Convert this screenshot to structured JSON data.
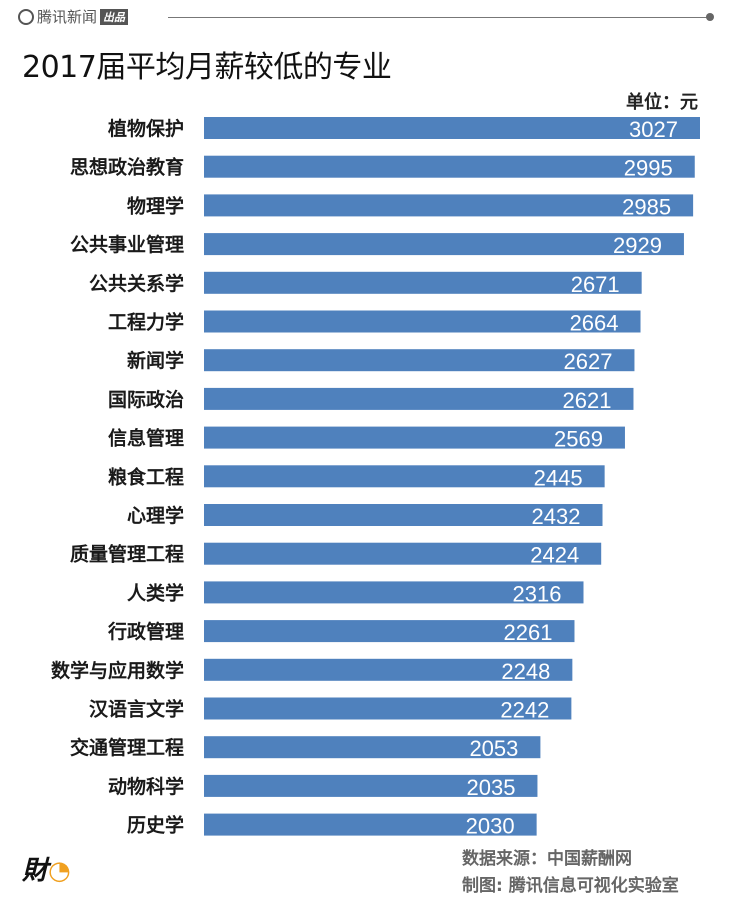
{
  "header": {
    "brand": "腾讯新闻",
    "brand_tag": "出品"
  },
  "chart_data": {
    "type": "bar",
    "orientation": "horizontal",
    "title": "2017届平均月薪较低的专业",
    "unit_label": "单位：元",
    "categories": [
      "植物保护",
      "思想政治教育",
      "物理学",
      "公共事业管理",
      "公共关系学",
      "工程力学",
      "新闻学",
      "国际政治",
      "信息管理",
      "粮食工程",
      "心理学",
      "质量管理工程",
      "人类学",
      "行政管理",
      "数学与应用数学",
      "汉语言文学",
      "交通管理工程",
      "动物科学",
      "历史学"
    ],
    "values": [
      3027,
      2995,
      2985,
      2929,
      2671,
      2664,
      2627,
      2621,
      2569,
      2445,
      2432,
      2424,
      2316,
      2261,
      2248,
      2242,
      2053,
      2035,
      2030
    ],
    "bar_color": "#4f81bd",
    "label_color": "#ffffff",
    "xlim": [
      0,
      3027
    ],
    "grid": false
  },
  "footer": {
    "source": "数据来源：中国薪酬网",
    "credit": "制图: 腾讯信息可视化实验室",
    "logo": "财看见"
  }
}
